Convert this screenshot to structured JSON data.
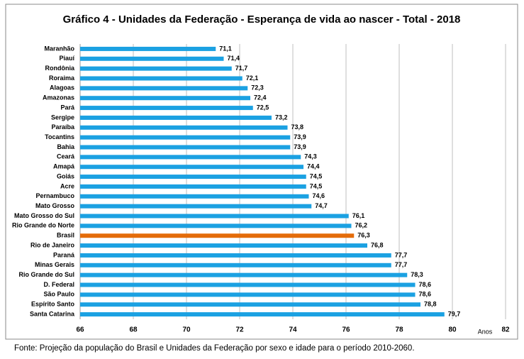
{
  "chart_data": {
    "type": "bar",
    "orientation": "horizontal",
    "title": "Gráfico 4 - Unidades da Federação - Esperança de vida ao nascer - Total - 2018",
    "x_label": "Anos",
    "source": "Fonte: Projeção da população do Brasil e Unidades da Federação por sexo e idade para o período 2010-2060.",
    "categories": [
      "Maranhão",
      "Piauí",
      "Rondônia",
      "Roraima",
      "Alagoas",
      "Amazonas",
      "Pará",
      "Sergipe",
      "Paraíba",
      "Tocantins",
      "Bahia",
      "Ceará",
      "Amapá",
      "Goiás",
      "Acre",
      "Pernambuco",
      "Mato Grosso",
      "Mato Grosso do Sul",
      "Rio Grande do Norte",
      "Brasil",
      "Rio de Janeiro",
      "Paraná",
      "Minas Gerais",
      "Rio Grande do Sul",
      "D. Federal",
      "São Paulo",
      "Espírito Santo",
      "Santa Catarina"
    ],
    "values": [
      71.1,
      71.4,
      71.7,
      72.1,
      72.3,
      72.4,
      72.5,
      73.2,
      73.8,
      73.9,
      73.9,
      74.3,
      74.4,
      74.5,
      74.5,
      74.6,
      74.7,
      76.1,
      76.2,
      76.3,
      76.8,
      77.7,
      77.7,
      78.3,
      78.6,
      78.6,
      78.8,
      79.7
    ],
    "value_labels": [
      "71,1",
      "71,4",
      "71,7",
      "72,1",
      "72,3",
      "72,4",
      "72,5",
      "73,2",
      "73,8",
      "73,9",
      "73,9",
      "74,3",
      "74,4",
      "74,5",
      "74,5",
      "74,6",
      "74,7",
      "76,1",
      "76,2",
      "76,3",
      "76,8",
      "77,7",
      "77,7",
      "78,3",
      "78,6",
      "78,6",
      "78,8",
      "79,7"
    ],
    "colors": [
      "#1ba1e2",
      "#1ba1e2",
      "#1ba1e2",
      "#1ba1e2",
      "#1ba1e2",
      "#1ba1e2",
      "#1ba1e2",
      "#1ba1e2",
      "#1ba1e2",
      "#1ba1e2",
      "#1ba1e2",
      "#1ba1e2",
      "#1ba1e2",
      "#1ba1e2",
      "#1ba1e2",
      "#1ba1e2",
      "#1ba1e2",
      "#1ba1e2",
      "#1ba1e2",
      "#e46c0a",
      "#1ba1e2",
      "#1ba1e2",
      "#1ba1e2",
      "#1ba1e2",
      "#1ba1e2",
      "#1ba1e2",
      "#1ba1e2",
      "#1ba1e2"
    ],
    "xlim": [
      66,
      82
    ],
    "xticks": [
      66,
      68,
      70,
      72,
      74,
      76,
      78,
      80,
      82
    ],
    "grid": true
  }
}
